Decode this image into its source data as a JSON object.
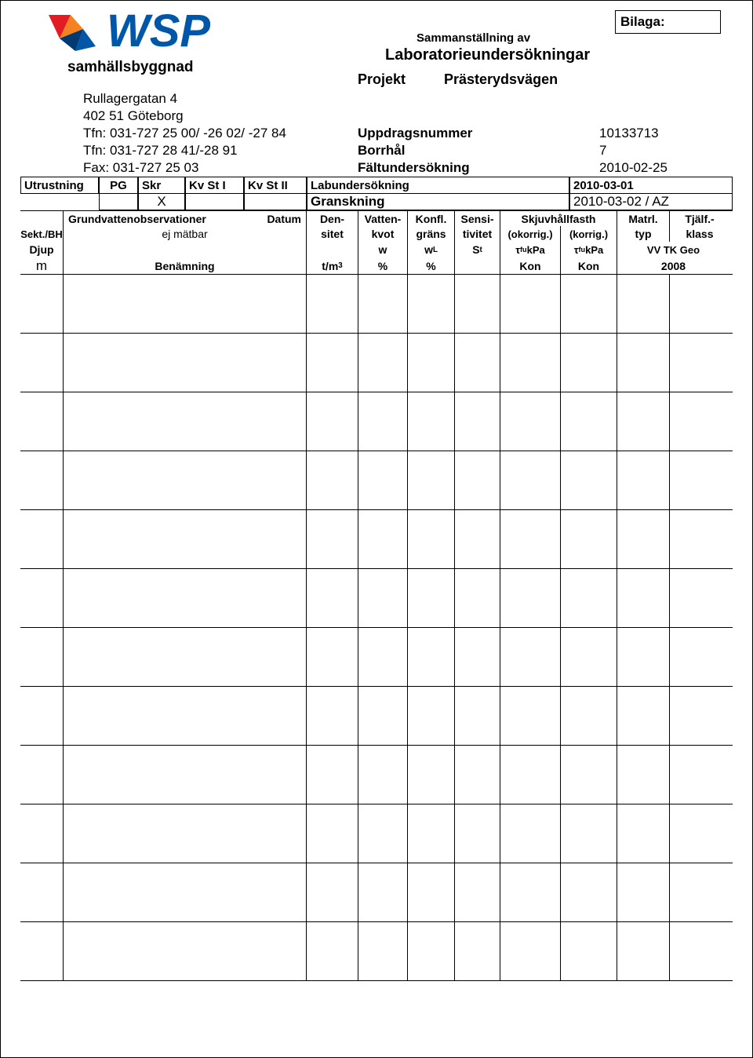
{
  "bilaga_label": "Bilaga:",
  "logo_text": "WSP",
  "subhead": "samhällsbyggnad",
  "summary_title": "Sammanställning av",
  "lab_title": "Laboratorieundersökningar",
  "projekt_label": "Projekt",
  "projekt_value": "Prästerydsvägen",
  "address": {
    "line1": "Rullagergatan 4",
    "line2": "402 51 Göteborg"
  },
  "contacts": [
    {
      "label": "Tfn: 031-727 25 00/ -26 02/ -27 84",
      "right_label": "Uppdragsnummer",
      "right_value": "10133713"
    },
    {
      "label": "Tfn: 031-727 28 41/-28 91",
      "right_label": "Borrhål",
      "right_value": "7"
    },
    {
      "label": "Fax: 031-727 25 03",
      "right_label": "Fältundersökning",
      "right_value": "2010-02-25"
    }
  ],
  "utrustning": {
    "label": "Utrustning",
    "cols": [
      "PG",
      "Skr",
      "Kv St I",
      "Kv St II"
    ],
    "right_label": "Labundersökning",
    "right_value": "2010-03-01",
    "x_mark": "X",
    "gransk_label": "Granskning",
    "gransk_value": "2010-03-02 / AZ"
  },
  "column_headers": {
    "row1": {
      "b_left": "Grundvattenobservationer",
      "b_right": "Datum",
      "c": "Den-",
      "d": "Vatten-",
      "e": "Konfl.",
      "f": "Sensi-",
      "gh": "Skjuvhållfasth",
      "i": "Matrl.",
      "j": "Tjälf.-"
    },
    "row2": {
      "a": "Sekt./BH",
      "b": "ej mätbar",
      "c": "sitet",
      "d": "kvot",
      "e": "gräns",
      "f": "tivitet",
      "g": "(okorrig.)",
      "h": "(korrig.)",
      "i": "typ",
      "j": "klass"
    },
    "row3": {
      "a": "Djup",
      "d": "w",
      "e": "w_L",
      "f": "S_t",
      "g": "τ_fu kPa",
      "h": "τ_fu kPa",
      "ij": "VV TK Geo"
    },
    "row4": {
      "a": "m",
      "b": "Benämning",
      "c": "t/m³",
      "d": "%",
      "e": "%",
      "g": "Kon",
      "h": "Kon",
      "ij": "2008"
    }
  },
  "data_row_count": 12,
  "colors": {
    "logo_red": "#e31b23",
    "logo_blue": "#0057a8",
    "logo_navy": "#003a70",
    "logo_orange": "#f58220",
    "border": "#000000",
    "text": "#000000",
    "bg": "#ffffff"
  }
}
